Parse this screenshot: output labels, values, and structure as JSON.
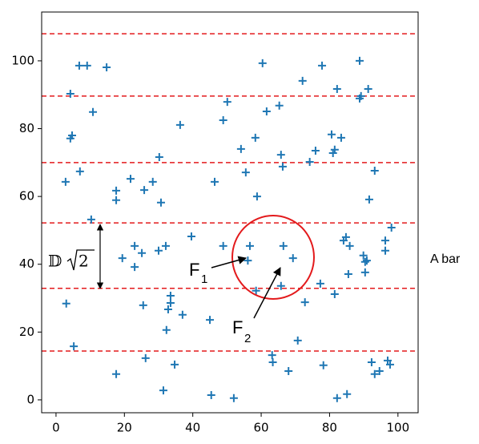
{
  "chart_data": {
    "type": "scatter",
    "marker": "+",
    "color": "#1f77b4",
    "x": [
      2.8,
      3,
      4.2,
      4.2,
      4.7,
      5.2,
      6.8,
      7,
      9.1,
      10.3,
      10.8,
      14.8,
      17.6,
      17.6,
      17.6,
      19.4,
      21.8,
      23,
      23,
      25.1,
      25.5,
      25.8,
      26.2,
      28.3,
      30,
      30.2,
      30.7,
      31.4,
      32.1,
      32.3,
      32.8,
      33.5,
      33.5,
      34.7,
      36.3,
      37,
      39.6,
      45,
      45.4,
      46.4,
      48.9,
      48.9,
      50.1,
      52,
      54.1,
      55.5,
      56.1,
      56.7,
      58.3,
      58.8,
      58.5,
      60.4,
      61.6,
      63.2,
      63.4,
      65.3,
      65.8,
      66.3,
      66.5,
      65.8,
      68,
      69.3,
      70.7,
      72.1,
      72.8,
      74.2,
      75.9,
      77.3,
      77.8,
      78.2,
      80.6,
      81,
      81.5,
      81.5,
      82.2,
      82.2,
      83.4,
      84.1,
      84.8,
      85.1,
      85.5,
      85.9,
      88.8,
      88.8,
      89.2,
      89.9,
      90.4,
      90.4,
      90.9,
      91.3,
      91.6,
      92.3,
      93.2,
      93.2,
      94.6,
      96.3,
      96.3,
      97,
      97.7,
      98.1
    ],
    "values": [
      64.3,
      28.4,
      90.3,
      77.1,
      78,
      15.8,
      98.6,
      67.4,
      98.6,
      53.2,
      84.9,
      98.1,
      61.7,
      58.9,
      7.6,
      41.8,
      65.2,
      45.4,
      39.2,
      43.3,
      27.9,
      61.9,
      12.3,
      64.3,
      44,
      71.6,
      58.2,
      2.8,
      45.4,
      20.6,
      26.7,
      30.7,
      28.6,
      10.4,
      81.1,
      25.1,
      48.2,
      23.6,
      1.4,
      64.3,
      45.4,
      82.5,
      87.9,
      0.5,
      74,
      67.1,
      41.1,
      45.4,
      77.3,
      60,
      32.2,
      99.3,
      85.1,
      13.2,
      11.1,
      86.8,
      72.3,
      68.8,
      45.4,
      33.6,
      8.5,
      41.8,
      17.5,
      94.1,
      28.8,
      70.2,
      73.5,
      34.3,
      98.6,
      10.2,
      78.3,
      72.8,
      73.8,
      31.2,
      91.7,
      0.5,
      77.3,
      47,
      48,
      1.7,
      37.1,
      45.4,
      100,
      88.9,
      89.6,
      42.6,
      40.7,
      37.6,
      41.1,
      91.7,
      59.1,
      11.1,
      67.6,
      7.6,
      8.5,
      47,
      44,
      11.6,
      10.4,
      50.8
    ],
    "xlim": [
      -4.2,
      105.9
    ],
    "ylim": [
      -3.8,
      114.4
    ],
    "xticks": [
      0,
      20,
      40,
      60,
      80,
      100
    ],
    "yticks": [
      0,
      20,
      40,
      60,
      80,
      100
    ],
    "hlines": [
      108.0,
      89.6,
      70.0,
      52.2,
      32.9,
      14.4
    ],
    "hline_color": "#e31a1c",
    "annotations": [
      {
        "text": "F",
        "sub": "1"
      },
      {
        "text": "F",
        "sub": "2"
      }
    ],
    "bracket_label": {
      "symbol": "𝔻",
      "radicand": "2"
    },
    "side_label": "A bar"
  }
}
